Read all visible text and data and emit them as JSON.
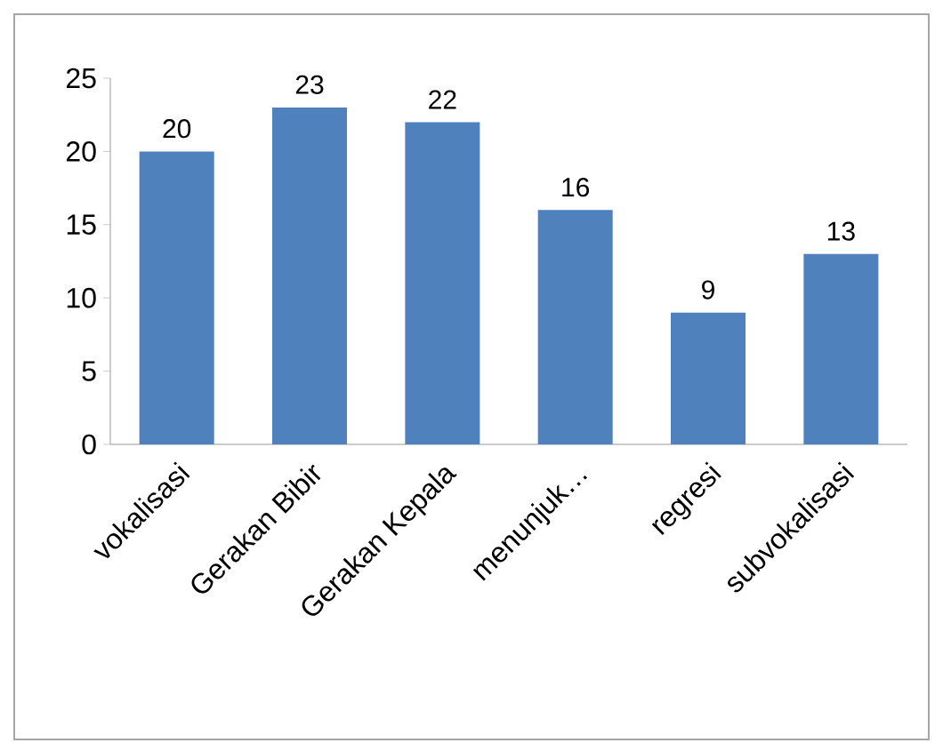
{
  "chart_data": {
    "type": "bar",
    "categories": [
      "vokalisasi",
      "Gerakan Bibir",
      "Gerakan Kepala",
      "menunjuk…",
      "regresi",
      "subvokalisasi"
    ],
    "values": [
      20,
      23,
      22,
      16,
      9,
      13
    ],
    "color": "#4f81bd",
    "ylim": [
      0,
      25
    ],
    "yticks": [
      0,
      5,
      10,
      15,
      20,
      25
    ],
    "data_labels": true,
    "grid": false
  }
}
